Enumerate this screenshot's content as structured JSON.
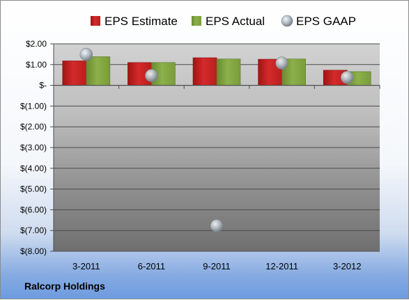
{
  "footer": {
    "company": "Ralcorp Holdings"
  },
  "colors": {
    "estimate": "#d42a2a",
    "actual": "#8cb04a",
    "gaap": "#b4bcc4"
  },
  "chart_data": {
    "type": "bar",
    "title": "",
    "xlabel": "",
    "ylabel": "",
    "categories": [
      "3-2011",
      "6-2011",
      "9-2011",
      "12-2011",
      "3-2012"
    ],
    "series": [
      {
        "name": "EPS Estimate",
        "type": "bar",
        "values": [
          1.18,
          1.1,
          1.33,
          1.26,
          0.73
        ]
      },
      {
        "name": "EPS Actual",
        "type": "bar",
        "values": [
          1.38,
          1.1,
          1.27,
          1.27,
          0.66
        ]
      },
      {
        "name": "EPS GAAP",
        "type": "marker",
        "values": [
          1.49,
          0.47,
          -6.77,
          1.07,
          0.38
        ]
      }
    ],
    "ylim": [
      -8.0,
      2.0
    ],
    "yticks": [
      2.0,
      1.0,
      0.0,
      -1.0,
      -2.0,
      -3.0,
      -4.0,
      -5.0,
      -6.0,
      -7.0,
      -8.0
    ],
    "ytick_labels": [
      "$2.00",
      "$1.00",
      "$-",
      "$(1.00)",
      "$(2.00)",
      "$(3.00)",
      "$(4.00)",
      "$(5.00)",
      "$(6.00)",
      "$(7.00)",
      "$(8.00)"
    ],
    "grid": true,
    "legend": "top"
  }
}
